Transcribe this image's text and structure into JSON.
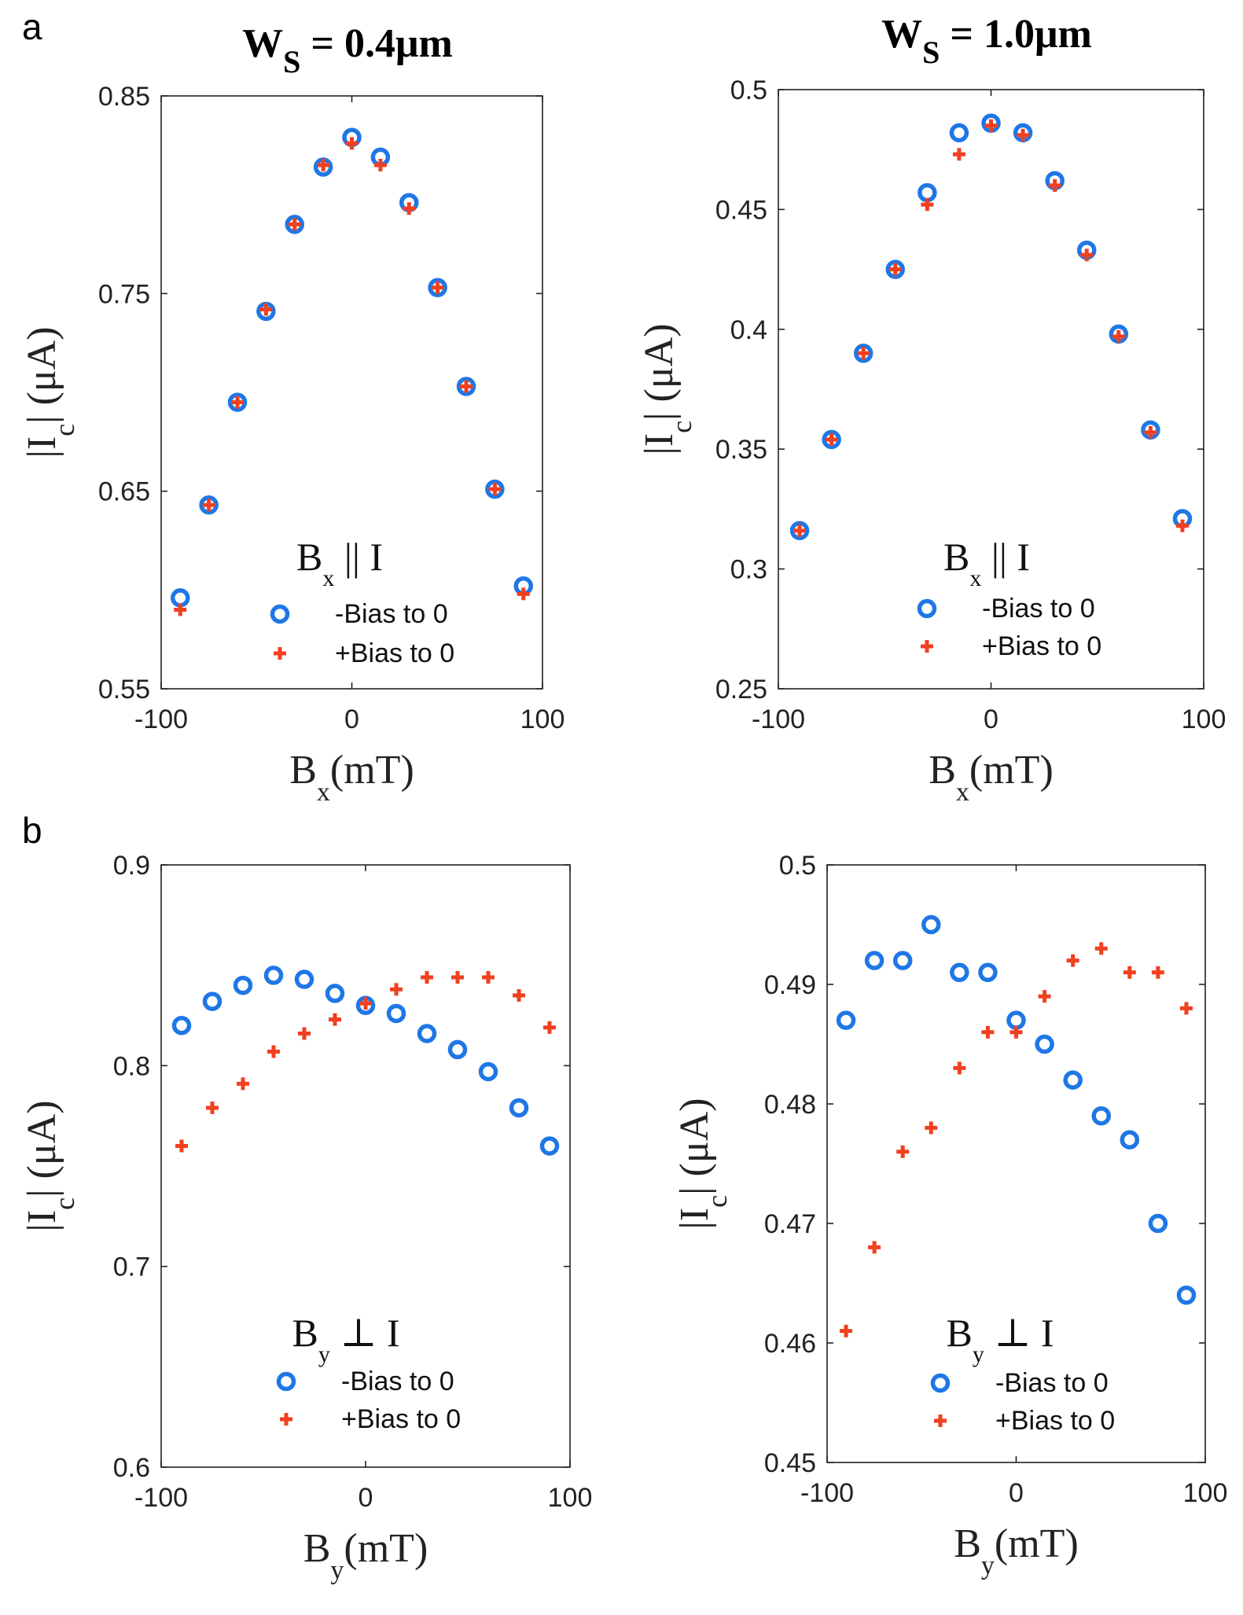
{
  "panels": {
    "a": "a",
    "b": "b"
  },
  "column_titles": [
    {
      "main": "W",
      "sub": "S",
      "rest": " = 0.4μm"
    },
    {
      "main": "W",
      "sub": "S",
      "rest": " = 1.0μm"
    }
  ],
  "series_names": [
    "-Bias to 0",
    "+Bias to 0"
  ],
  "colors": {
    "minus_bias": "#1f77e6",
    "plus_bias": "#f04020"
  },
  "chart_data": [
    {
      "id": "a-left",
      "type": "scatter",
      "xlabel": {
        "main": "B",
        "sub": "x",
        "rest": "(mT)"
      },
      "ylabel": {
        "pre": "|I",
        "sub": "c",
        "post": "| (μA)"
      },
      "legend_title": {
        "main": "B",
        "sub": "x",
        "rest": " || I"
      },
      "xlim": [
        -100,
        100
      ],
      "ylim": [
        0.55,
        0.85
      ],
      "xticks": [
        -100,
        0,
        100
      ],
      "yticks": [
        0.55,
        0.65,
        0.75,
        0.85
      ],
      "xtick_labels": [
        "-100",
        "0",
        "100"
      ],
      "ytick_labels": [
        "0.55",
        "0.65",
        "0.75",
        "0.85"
      ],
      "x": [
        -90,
        -75,
        -60,
        -45,
        -30,
        -15,
        0,
        15,
        30,
        45,
        60,
        75,
        90
      ],
      "series": [
        {
          "name": "-Bias to 0",
          "marker": "circle",
          "values": [
            0.596,
            0.643,
            0.695,
            0.741,
            0.785,
            0.814,
            0.829,
            0.819,
            0.796,
            0.753,
            0.703,
            0.651,
            0.602
          ]
        },
        {
          "name": "+Bias to 0",
          "marker": "plus",
          "values": [
            0.59,
            0.643,
            0.695,
            0.742,
            0.785,
            0.815,
            0.826,
            0.815,
            0.793,
            0.753,
            0.703,
            0.651,
            0.598
          ]
        }
      ]
    },
    {
      "id": "a-right",
      "type": "scatter",
      "xlabel": {
        "main": "B",
        "sub": "x",
        "rest": "(mT)"
      },
      "ylabel": {
        "pre": "|I",
        "sub": "c",
        "post": "| (μA)"
      },
      "legend_title": {
        "main": "B",
        "sub": "x",
        "rest": " || I"
      },
      "xlim": [
        -100,
        100
      ],
      "ylim": [
        0.25,
        0.5
      ],
      "xticks": [
        -100,
        0,
        100
      ],
      "yticks": [
        0.25,
        0.3,
        0.35,
        0.4,
        0.45,
        0.5
      ],
      "xtick_labels": [
        "-100",
        "0",
        "100"
      ],
      "ytick_labels": [
        "0.25",
        "0.3",
        "0.35",
        "0.4",
        "0.45",
        "0.5"
      ],
      "x": [
        -90,
        -75,
        -60,
        -45,
        -30,
        -15,
        0,
        15,
        30,
        45,
        60,
        75,
        90
      ],
      "series": [
        {
          "name": "-Bias to 0",
          "marker": "circle",
          "values": [
            0.316,
            0.354,
            0.39,
            0.425,
            0.457,
            0.482,
            0.486,
            0.482,
            0.462,
            0.433,
            0.398,
            0.358,
            0.321
          ]
        },
        {
          "name": "+Bias to 0",
          "marker": "plus",
          "values": [
            0.316,
            0.354,
            0.39,
            0.425,
            0.452,
            0.473,
            0.485,
            0.481,
            0.46,
            0.431,
            0.397,
            0.357,
            0.318
          ]
        }
      ]
    },
    {
      "id": "b-left",
      "type": "scatter",
      "xlabel": {
        "main": "B",
        "sub": "y",
        "rest": "(mT)"
      },
      "ylabel": {
        "pre": "|I",
        "sub": "c",
        "post": "| (μA)"
      },
      "legend_title": {
        "main": "B",
        "sub": "y",
        "rest": " ⊥ I"
      },
      "xlim": [
        -100,
        100
      ],
      "ylim": [
        0.6,
        0.9
      ],
      "xticks": [
        -100,
        0,
        100
      ],
      "yticks": [
        0.6,
        0.7,
        0.8,
        0.9
      ],
      "xtick_labels": [
        "-100",
        "0",
        "100"
      ],
      "ytick_labels": [
        "0.6",
        "0.7",
        "0.8",
        "0.9"
      ],
      "x": [
        -90,
        -75,
        -60,
        -45,
        -30,
        -15,
        0,
        15,
        30,
        45,
        60,
        75,
        90
      ],
      "series": [
        {
          "name": "-Bias to 0",
          "marker": "circle",
          "values": [
            0.82,
            0.832,
            0.84,
            0.845,
            0.843,
            0.836,
            0.83,
            0.826,
            0.816,
            0.808,
            0.797,
            0.779,
            0.76
          ]
        },
        {
          "name": "+Bias to 0",
          "marker": "plus",
          "values": [
            0.76,
            0.779,
            0.791,
            0.807,
            0.816,
            0.823,
            0.831,
            0.838,
            0.844,
            0.844,
            0.844,
            0.835,
            0.819
          ]
        }
      ]
    },
    {
      "id": "b-right",
      "type": "scatter",
      "xlabel": {
        "main": "B",
        "sub": "y",
        "rest": "(mT)"
      },
      "ylabel": {
        "pre": "|I",
        "sub": "c",
        "post": "| (μA)"
      },
      "legend_title": {
        "main": "B",
        "sub": "y",
        "rest": " ⊥ I"
      },
      "xlim": [
        -100,
        100
      ],
      "ylim": [
        0.45,
        0.5
      ],
      "xticks": [
        -100,
        0,
        100
      ],
      "yticks": [
        0.45,
        0.46,
        0.47,
        0.48,
        0.49,
        0.5
      ],
      "xtick_labels": [
        "-100",
        "0",
        "100"
      ],
      "ytick_labels": [
        "0.45",
        "0.46",
        "0.47",
        "0.48",
        "0.49",
        "0.5"
      ],
      "x": [
        -90,
        -75,
        -60,
        -45,
        -30,
        -15,
        0,
        15,
        30,
        45,
        60,
        75,
        90
      ],
      "series": [
        {
          "name": "-Bias to 0",
          "marker": "circle",
          "values": [
            0.487,
            0.492,
            0.492,
            0.495,
            0.491,
            0.491,
            0.487,
            0.485,
            0.482,
            0.479,
            0.477,
            0.47,
            0.464
          ]
        },
        {
          "name": "+Bias to 0",
          "marker": "plus",
          "values": [
            0.461,
            0.468,
            0.476,
            0.478,
            0.483,
            0.486,
            0.486,
            0.489,
            0.492,
            0.493,
            0.491,
            0.491,
            0.488
          ]
        }
      ]
    }
  ]
}
